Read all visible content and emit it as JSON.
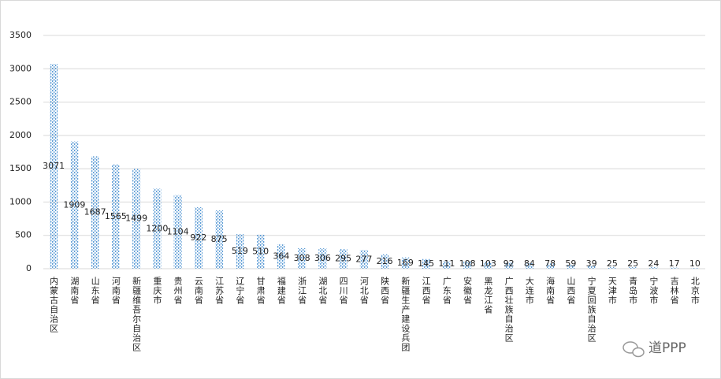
{
  "chart_data": {
    "type": "bar",
    "categories": [
      "内蒙古自治区",
      "湖南省",
      "山东省",
      "河南省",
      "新疆维吾尔自治区",
      "重庆市",
      "贵州省",
      "云南省",
      "江苏省",
      "辽宁省",
      "甘肃省",
      "福建省",
      "浙江省",
      "湖北省",
      "四川省",
      "河北省",
      "陕西省",
      "新疆生产建设兵团",
      "江西省",
      "广东省",
      "安徽省",
      "黑龙江省",
      "广西壮族自治区",
      "大连市",
      "海南省",
      "山西省",
      "宁夏回族自治区",
      "天津市",
      "青岛市",
      "宁波市",
      "吉林省",
      "北京市"
    ],
    "values": [
      3071,
      1909,
      1687,
      1565,
      1499,
      1200,
      1104,
      922,
      875,
      519,
      510,
      364,
      308,
      306,
      295,
      277,
      216,
      169,
      145,
      111,
      108,
      103,
      92,
      84,
      78,
      59,
      39,
      25,
      25,
      24,
      17,
      10
    ],
    "color": "#5b9bd5",
    "ylim": [
      0,
      3500
    ],
    "yticks": [
      0,
      500,
      1000,
      1500,
      2000,
      2500,
      3000,
      3500
    ],
    "grid": true,
    "watermark": "道PPP"
  }
}
